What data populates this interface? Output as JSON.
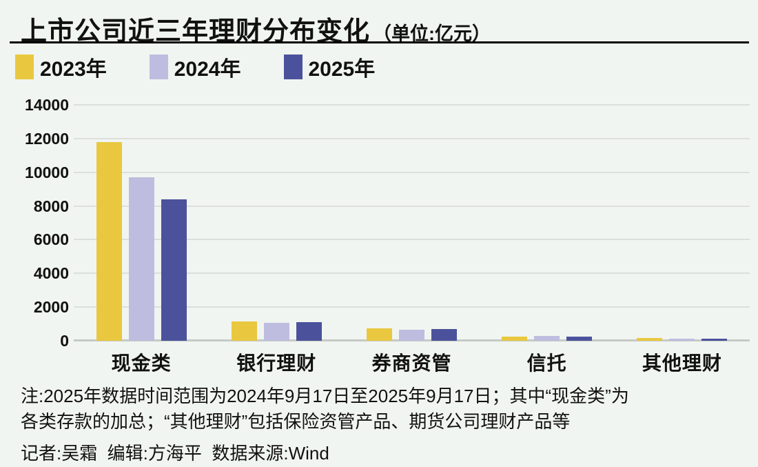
{
  "title": {
    "main": "上市公司近三年理财分布变化",
    "unit": "（单位:亿元）"
  },
  "colors": {
    "background": "#F1F5F1",
    "gridline": "#DCDFDA",
    "baseline": "#C6CAC5",
    "text": "#111111",
    "series_2023": "#E9C83F",
    "series_2024": "#BEBDDF",
    "series_2025": "#4B529B"
  },
  "chart_data": {
    "type": "bar",
    "title": "上市公司近三年理财分布变化",
    "unit": "亿元",
    "categories": [
      "现金类",
      "银行理财",
      "券商资管",
      "信托",
      "其他理财"
    ],
    "series": [
      {
        "name": "2023年",
        "color": "#E9C83F",
        "values": [
          11800,
          1150,
          750,
          230,
          150
        ]
      },
      {
        "name": "2024年",
        "color": "#BEBDDF",
        "values": [
          9700,
          1050,
          650,
          280,
          130
        ]
      },
      {
        "name": "2025年",
        "color": "#4B529B",
        "values": [
          8400,
          1100,
          700,
          260,
          120
        ]
      }
    ],
    "ylim": [
      0,
      14000
    ],
    "yticks": [
      0,
      2000,
      4000,
      6000,
      8000,
      10000,
      12000,
      14000
    ],
    "xlabel": "",
    "ylabel": "",
    "grid": true,
    "legend_position": "top-left"
  },
  "notes": {
    "line1": "注:2025年数据时间范围为2024年9月17日至2025年9月17日；其中“现金类”为",
    "line2": "各类存款的加总；“其他理财”包括保险资管产品、期货公司理财产品等",
    "credits": "记者:吴霜  编辑:方海平  数据来源:Wind"
  }
}
